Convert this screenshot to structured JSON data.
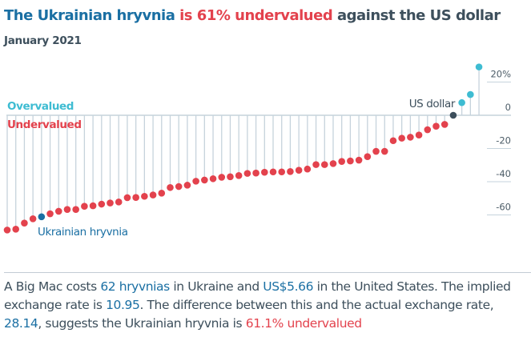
{
  "title": {
    "part1": "The Ukrainian hryvnia",
    "part2": "is 61% undervalued",
    "part3": "against the US dollar"
  },
  "subtitle": "January 2021",
  "colors": {
    "blue": "#1a6fa3",
    "red": "#e3424d",
    "teal": "#3ebcd2",
    "dark": "#3d4f5c",
    "stem": "#c6d3dc"
  },
  "chart_data": {
    "type": "lollipop",
    "ylabel": "",
    "yunit": "%",
    "ylim": [
      -70,
      30
    ],
    "yticks": [
      20,
      0,
      -20,
      -40,
      -60
    ],
    "ytick_labels": [
      "20%",
      "0",
      "-20",
      "-40",
      "-60"
    ],
    "zone_labels": {
      "over": "Overvalued",
      "under": "Undervalued"
    },
    "annotations": {
      "us": "US dollar",
      "ukraine": "Ukrainian hryvnia"
    },
    "highlight_index": {
      "ukraine": 4,
      "us": 52
    },
    "values": [
      -69.1,
      -68.6,
      -64.9,
      -62.3,
      -61.1,
      -59.3,
      -57.8,
      -56.7,
      -56.7,
      -54.8,
      -54.5,
      -53.5,
      -52.8,
      -52.2,
      -49.6,
      -49.5,
      -48.8,
      -48.0,
      -46.9,
      -43.5,
      -42.9,
      -42.1,
      -39.7,
      -39.0,
      -38.2,
      -37.3,
      -37.0,
      -36.3,
      -35.0,
      -34.8,
      -34.3,
      -34.1,
      -34.1,
      -33.9,
      -33.1,
      -32.4,
      -29.7,
      -29.7,
      -29.1,
      -27.8,
      -27.5,
      -27.0,
      -24.9,
      -21.7,
      -21.7,
      -15.3,
      -13.8,
      -13.2,
      -11.9,
      -8.7,
      -6.6,
      -5.5,
      0,
      7.6,
      12.5,
      29.1
    ]
  },
  "paragraph": {
    "s1": "A Big Mac costs ",
    "local_price": "62 hryvnias",
    "s2": " in Ukraine and ",
    "us_price": "US$5.66",
    "s3": " in the United States. The implied exchange rate is ",
    "implied_rate": "10.95",
    "s4": ". The difference between this and the actual exchange rate, ",
    "actual_rate": "28.14",
    "s5": ", suggests the Ukrainian hryvnia is ",
    "valuation": "61.1% undervalued"
  }
}
